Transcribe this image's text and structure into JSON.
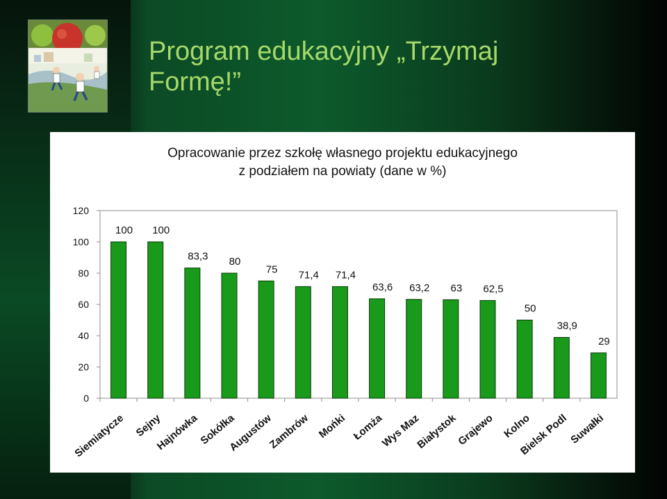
{
  "slide": {
    "title": "Program edukacyjny „Trzymaj Formę!”",
    "accent_color": "#a6d96a",
    "background_color": "#0d5a2c"
  },
  "illustration": {
    "icon": "apples-and-running-children-illustration"
  },
  "chart_data": {
    "type": "bar",
    "title_line1": "Opracowanie przez szkołę własnego projektu edukacyjnego",
    "title_line2": "z podziałem na powiaty (dane w %)",
    "categories": [
      "Siemiatycze",
      "Sejny",
      "Hajnówka",
      "Sokółka",
      "Augustów",
      "Zambrów",
      "Mońki",
      "Łomża",
      "Wys Maz",
      "Białystok",
      "Grajewo",
      "Kolno",
      "Bielsk Podl",
      "Suwałki"
    ],
    "values": [
      100,
      100,
      83.3,
      80,
      75,
      71.4,
      71.4,
      63.6,
      63.2,
      63,
      62.5,
      50,
      38.9,
      29
    ],
    "value_labels": [
      "100",
      "100",
      "83,3",
      "80",
      "75",
      "71,4",
      "71,4",
      "63,6",
      "63,2",
      "63",
      "62,5",
      "50",
      "38,9",
      "29"
    ],
    "yticks": [
      0,
      20,
      40,
      60,
      80,
      100,
      120
    ],
    "ylim": [
      0,
      120
    ],
    "xlabel": "",
    "ylabel": "",
    "grid": false,
    "bar_color": "#1a9a1a",
    "bar_edge_color": "#0a3a0a"
  }
}
